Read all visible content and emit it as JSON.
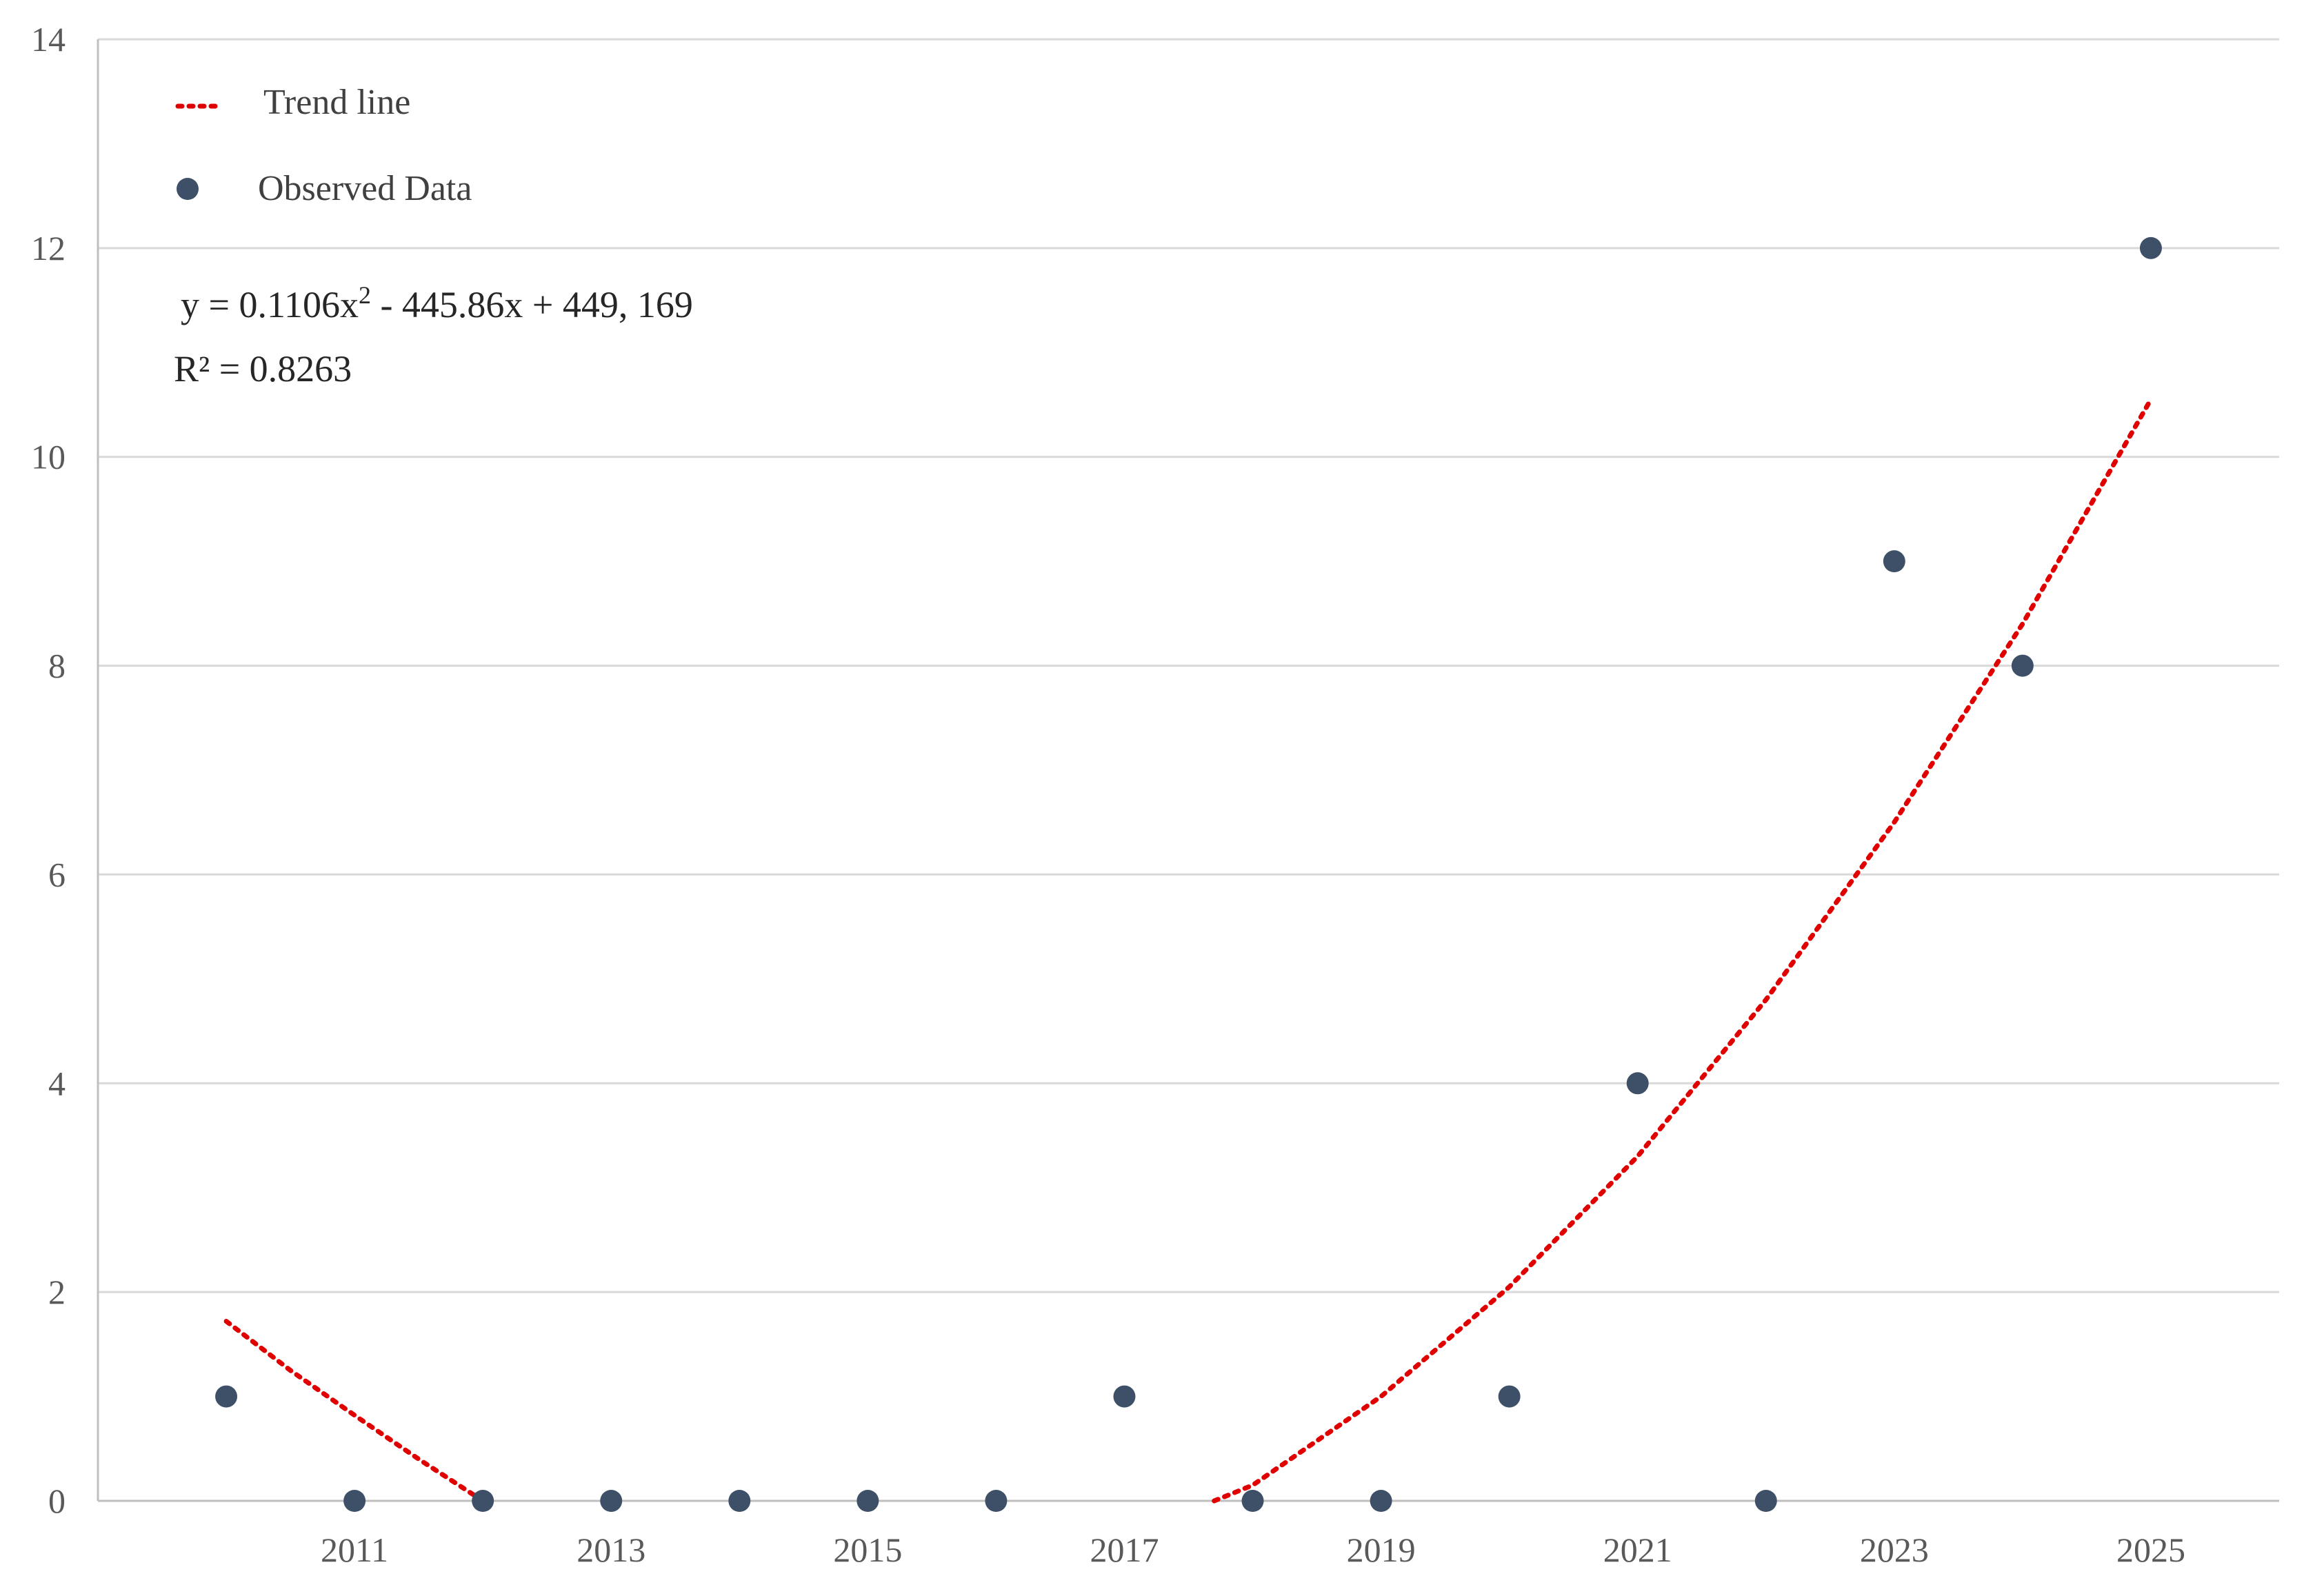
{
  "chart_data": {
    "type": "scatter",
    "title": "",
    "xlabel": "",
    "ylabel": "",
    "xlim": [
      2009,
      2026
    ],
    "ylim": [
      0,
      14
    ],
    "y_ticks": [
      0,
      2,
      4,
      6,
      8,
      10,
      12,
      14
    ],
    "x_ticks": [
      2011,
      2013,
      2015,
      2017,
      2019,
      2021,
      2023,
      2025
    ],
    "grid": "horizontal",
    "legend_position": "top-left",
    "legend": {
      "trend_label": "Trend line",
      "data_label": "Observed Data"
    },
    "series": [
      {
        "name": "Observed Data",
        "marker": "circle",
        "color": "#3d5068",
        "points": [
          {
            "x": 2010,
            "y": 1
          },
          {
            "x": 2011,
            "y": 0
          },
          {
            "x": 2012,
            "y": 0
          },
          {
            "x": 2013,
            "y": 0
          },
          {
            "x": 2014,
            "y": 0
          },
          {
            "x": 2015,
            "y": 0
          },
          {
            "x": 2016,
            "y": 0
          },
          {
            "x": 2017,
            "y": 1
          },
          {
            "x": 2018,
            "y": 0
          },
          {
            "x": 2019,
            "y": 0
          },
          {
            "x": 2020,
            "y": 1
          },
          {
            "x": 2021,
            "y": 4
          },
          {
            "x": 2022,
            "y": 0
          },
          {
            "x": 2023,
            "y": 9
          },
          {
            "x": 2024,
            "y": 8
          },
          {
            "x": 2025,
            "y": 12
          }
        ]
      }
    ],
    "trend": {
      "name": "Trend line",
      "style": "dotted",
      "color": "#e00000",
      "segments": [
        [
          {
            "x": 2010,
            "y": 1.72
          },
          {
            "x": 2010.5,
            "y": 1.25
          },
          {
            "x": 2011,
            "y": 0.82
          },
          {
            "x": 2011.5,
            "y": 0.4
          },
          {
            "x": 2012,
            "y": 0
          }
        ],
        [
          {
            "x": 2017.7,
            "y": 0
          },
          {
            "x": 2018,
            "y": 0.15
          },
          {
            "x": 2019,
            "y": 1.0
          },
          {
            "x": 2020,
            "y": 2.05
          },
          {
            "x": 2021,
            "y": 3.3
          },
          {
            "x": 2022,
            "y": 4.8
          },
          {
            "x": 2023,
            "y": 6.5
          },
          {
            "x": 2024,
            "y": 8.4
          },
          {
            "x": 2025,
            "y": 10.55
          }
        ]
      ]
    },
    "annotations": {
      "equation_prefix": "y = 0.1106x",
      "equation_sup": "2",
      "equation_suffix": " - 445.86x + 449, 169",
      "r_squared": "R² = 0.8263"
    }
  }
}
